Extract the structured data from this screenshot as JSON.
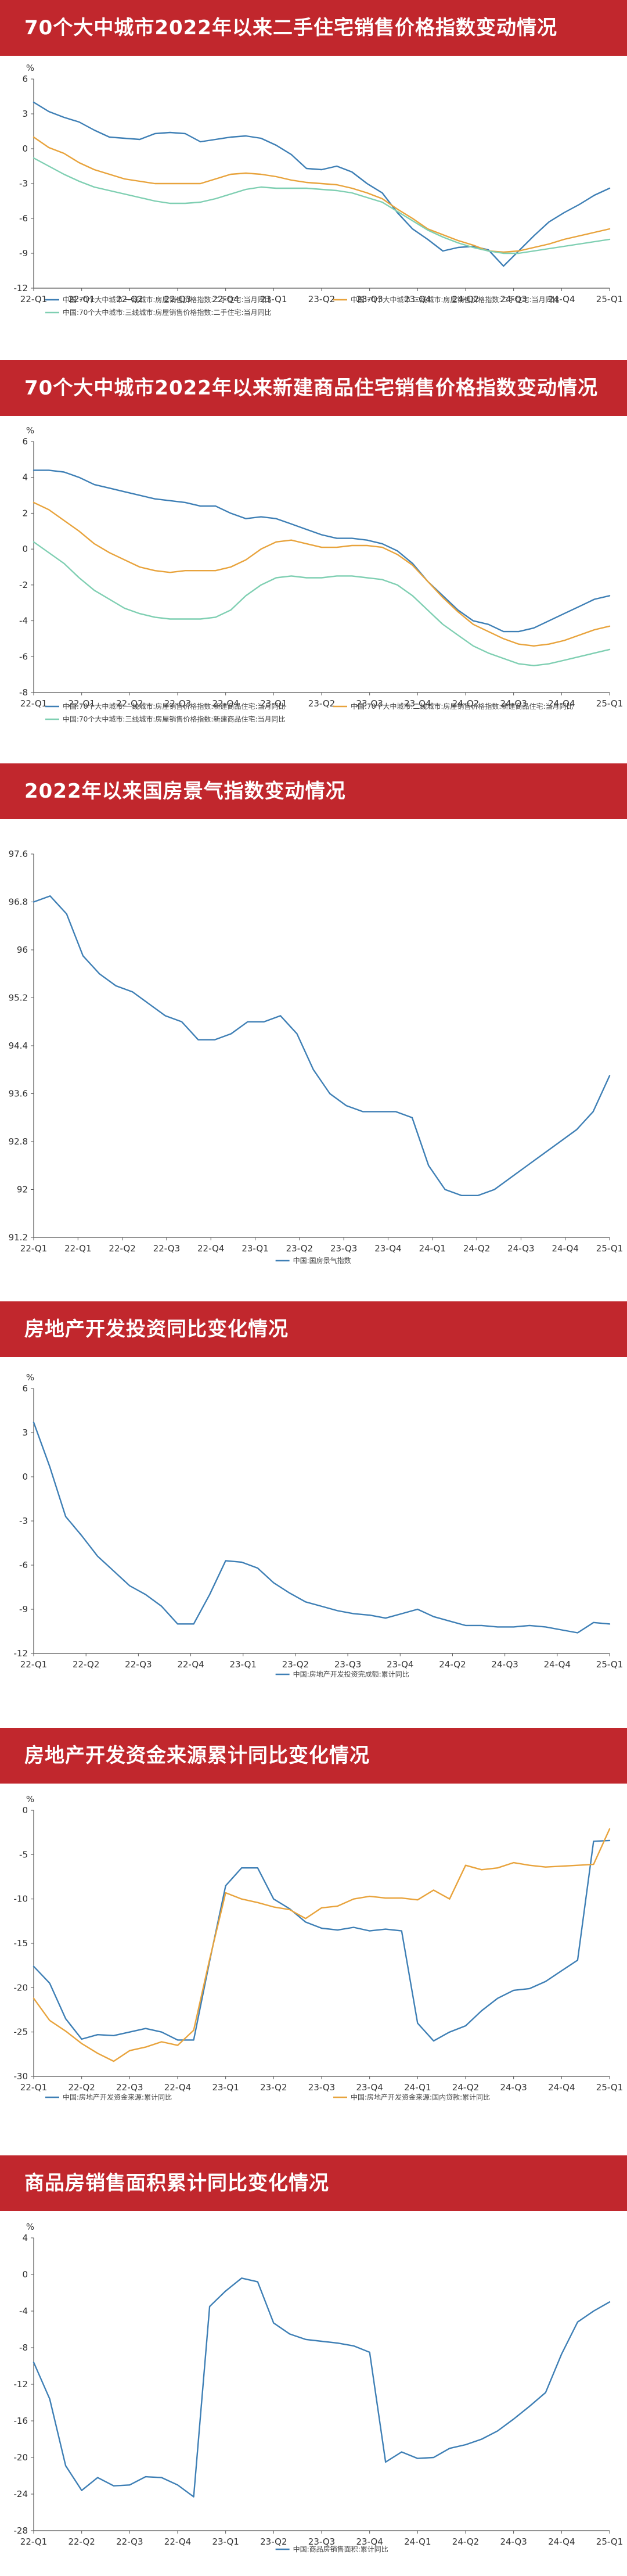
{
  "chart_data": [
    {
      "type": "line",
      "title": "70个大中城市2022年以来二手住宅销售价格指数变动情况",
      "unit": "%",
      "ylim": [
        -12,
        6
      ],
      "yticks": [
        "6",
        "3",
        "0",
        "-3",
        "-6",
        "-9",
        "-12"
      ],
      "ytick_values": [
        6,
        3,
        0,
        -3,
        -6,
        -9,
        -12
      ],
      "xticks": [
        "22-Q1",
        "22-Q1",
        "22-Q2",
        "22-Q3",
        "22-Q4",
        "23-Q1",
        "23-Q2",
        "23-Q3",
        "23-Q4",
        "24-Q2",
        "24-Q3",
        "24-Q4",
        "25-Q1"
      ],
      "n_points": 39,
      "grid": false,
      "series": [
        {
          "name": "中国:70个大中城市:一线城市:房屋销售价格指数:二手住宅:当月同比",
          "color": "#3e7fb5",
          "values": [
            4,
            3.2,
            2.7,
            2.3,
            1.6,
            1.0,
            0.9,
            0.8,
            1.3,
            1.4,
            1.3,
            0.6,
            0.8,
            1.0,
            1.1,
            0.9,
            0.3,
            -0.5,
            -1.7,
            -1.8,
            -1.5,
            -2.0,
            -3.0,
            -3.8,
            -5.5,
            -6.9,
            -7.8,
            -8.8,
            -8.5,
            -8.4,
            -8.7,
            -10.1,
            -8.8,
            -7.5,
            -6.3,
            -5.5,
            -4.8,
            -4.0,
            -3.4
          ]
        },
        {
          "name": "中国:70个大中城市:二线城市:房屋销售价格指数:二手住宅:当月同比",
          "color": "#e8a33c",
          "values": [
            1.0,
            0.1,
            -0.4,
            -1.2,
            -1.8,
            -2.2,
            -2.6,
            -2.8,
            -3.0,
            -3.0,
            -3.0,
            -3.0,
            -2.6,
            -2.2,
            -2.1,
            -2.2,
            -2.4,
            -2.7,
            -2.9,
            -3.0,
            -3.1,
            -3.4,
            -3.8,
            -4.3,
            -5.2,
            -6.0,
            -6.9,
            -7.4,
            -7.9,
            -8.3,
            -8.8,
            -8.9,
            -8.8,
            -8.5,
            -8.2,
            -7.8,
            -7.5,
            -7.2,
            -6.9
          ]
        },
        {
          "name": "中国:70个大中城市:三线城市:房屋销售价格指数:二手住宅:当月同比",
          "color": "#7fcfb2",
          "values": [
            -0.8,
            -1.5,
            -2.2,
            -2.8,
            -3.3,
            -3.6,
            -3.9,
            -4.2,
            -4.5,
            -4.7,
            -4.7,
            -4.6,
            -4.3,
            -3.9,
            -3.5,
            -3.3,
            -3.4,
            -3.4,
            -3.4,
            -3.5,
            -3.6,
            -3.8,
            -4.2,
            -4.6,
            -5.4,
            -6.2,
            -7.0,
            -7.6,
            -8.1,
            -8.5,
            -8.8,
            -9.0,
            -9.0,
            -8.8,
            -8.6,
            -8.4,
            -8.2,
            -8.0,
            -7.8
          ]
        }
      ]
    },
    {
      "type": "line",
      "title": "70个大中城市2022年以来新建商品住宅销售价格指数变动情况",
      "unit": "%",
      "ylim": [
        -8,
        6
      ],
      "yticks": [
        "6",
        "4",
        "2",
        "0",
        "-2",
        "-4",
        "-6",
        "-8"
      ],
      "ytick_values": [
        6,
        4,
        2,
        0,
        -2,
        -4,
        -6,
        -8
      ],
      "xticks": [
        "22-Q1",
        "22-Q1",
        "22-Q2",
        "22-Q3",
        "22-Q4",
        "23-Q1",
        "23-Q2",
        "23-Q3",
        "23-Q4",
        "24-Q2",
        "24-Q3",
        "24-Q4",
        "25-Q1"
      ],
      "n_points": 39,
      "grid": false,
      "series": [
        {
          "name": "中国:70个大中城市:一线城市:房屋销售价格指数:新建商品住宅:当月同比",
          "color": "#3e7fb5",
          "values": [
            4.4,
            4.4,
            4.3,
            4.0,
            3.6,
            3.4,
            3.2,
            3.0,
            2.8,
            2.7,
            2.6,
            2.4,
            2.4,
            2.0,
            1.7,
            1.8,
            1.7,
            1.4,
            1.1,
            0.8,
            0.6,
            0.6,
            0.5,
            0.3,
            -0.1,
            -0.8,
            -1.8,
            -2.6,
            -3.4,
            -4.0,
            -4.2,
            -4.6,
            -4.6,
            -4.4,
            -4.0,
            -3.6,
            -3.2,
            -2.8,
            -2.6
          ]
        },
        {
          "name": "中国:70个大中城市:二线城市:房屋销售价格指数:新建商品住宅:当月同比",
          "color": "#e8a33c",
          "values": [
            2.6,
            2.2,
            1.6,
            1.0,
            0.3,
            -0.2,
            -0.6,
            -1.0,
            -1.2,
            -1.3,
            -1.2,
            -1.2,
            -1.2,
            -1.0,
            -0.6,
            0.0,
            0.4,
            0.5,
            0.3,
            0.1,
            0.1,
            0.2,
            0.2,
            0.1,
            -0.3,
            -0.9,
            -1.8,
            -2.7,
            -3.5,
            -4.2,
            -4.6,
            -5.0,
            -5.3,
            -5.4,
            -5.3,
            -5.1,
            -4.8,
            -4.5,
            -4.3
          ]
        },
        {
          "name": "中国:70个大中城市:三线城市:房屋销售价格指数:新建商品住宅:当月同比",
          "color": "#7fcfb2",
          "values": [
            0.4,
            -0.2,
            -0.8,
            -1.6,
            -2.3,
            -2.8,
            -3.3,
            -3.6,
            -3.8,
            -3.9,
            -3.9,
            -3.9,
            -3.8,
            -3.4,
            -2.6,
            -2.0,
            -1.6,
            -1.5,
            -1.6,
            -1.6,
            -1.5,
            -1.5,
            -1.6,
            -1.7,
            -2.0,
            -2.6,
            -3.4,
            -4.2,
            -4.8,
            -5.4,
            -5.8,
            -6.1,
            -6.4,
            -6.5,
            -6.4,
            -6.2,
            -6.0,
            -5.8,
            -5.6
          ]
        }
      ]
    },
    {
      "type": "line",
      "title": "2022年以来国房景气指数变动情况",
      "ylim": [
        91.2,
        97.6
      ],
      "yticks": [
        "97.6",
        "96.8",
        "96",
        "95.2",
        "94.4",
        "93.6",
        "92.8",
        "92",
        "91.2"
      ],
      "ytick_values": [
        97.6,
        96.8,
        96,
        95.2,
        94.4,
        93.6,
        92.8,
        92,
        91.2
      ],
      "xticks": [
        "22-Q1",
        "22-Q1",
        "22-Q2",
        "22-Q3",
        "22-Q4",
        "23-Q1",
        "23-Q2",
        "23-Q3",
        "23-Q4",
        "24-Q1",
        "24-Q2",
        "24-Q3",
        "24-Q4",
        "25-Q1"
      ],
      "n_points": 36,
      "grid": false,
      "series": [
        {
          "name": "中国:国房景气指数",
          "color": "#3e7fb5",
          "values": [
            96.8,
            96.9,
            96.6,
            95.9,
            95.6,
            95.4,
            95.3,
            95.1,
            94.9,
            94.8,
            94.5,
            94.5,
            94.6,
            94.8,
            94.8,
            94.9,
            94.6,
            94.0,
            93.6,
            93.4,
            93.3,
            93.3,
            93.3,
            93.2,
            92.4,
            92.0,
            91.9,
            91.9,
            92.0,
            92.2,
            92.4,
            92.6,
            92.8,
            93.0,
            93.3,
            93.9
          ]
        }
      ]
    },
    {
      "type": "line",
      "title": "房地产开发投资同比变化情况",
      "unit": "%",
      "ylim": [
        -12,
        6
      ],
      "yticks": [
        "6",
        "3",
        "0",
        "-3",
        "-6",
        "-9",
        "-12"
      ],
      "ytick_values": [
        6,
        3,
        0,
        -3,
        -6,
        -9,
        -12
      ],
      "xticks": [
        "22-Q1",
        "22-Q2",
        "22-Q3",
        "22-Q4",
        "23-Q1",
        "23-Q2",
        "23-Q3",
        "23-Q4",
        "24-Q2",
        "24-Q3",
        "24-Q4",
        "25-Q1"
      ],
      "n_points": 37,
      "grid": false,
      "series": [
        {
          "name": "中国:房地产开发投资完成额:累计同比",
          "color": "#3e7fb5",
          "values": [
            3.7,
            0.7,
            -2.7,
            -4.0,
            -5.4,
            -6.4,
            -7.4,
            -8.0,
            -8.8,
            -10.0,
            -10.0,
            -8.0,
            -5.7,
            -5.8,
            -6.2,
            -7.2,
            -7.9,
            -8.5,
            -8.8,
            -9.1,
            -9.3,
            -9.4,
            -9.6,
            -9.3,
            -9.0,
            -9.5,
            -9.8,
            -10.1,
            -10.1,
            -10.2,
            -10.2,
            -10.1,
            -10.2,
            -10.4,
            -10.6,
            -9.9,
            -10.0
          ]
        }
      ]
    },
    {
      "type": "line",
      "title": "房地产开发资金来源累计同比变化情况",
      "unit": "%",
      "ylim": [
        -30,
        0
      ],
      "yticks": [
        "0",
        "-5",
        "-10",
        "-15",
        "-20",
        "-25",
        "-30"
      ],
      "ytick_values": [
        0,
        -5,
        -10,
        -15,
        -20,
        -25,
        -30
      ],
      "xticks": [
        "22-Q1",
        "22-Q2",
        "22-Q3",
        "22-Q4",
        "23-Q1",
        "23-Q2",
        "23-Q3",
        "23-Q4",
        "24-Q1",
        "24-Q2",
        "24-Q3",
        "24-Q4",
        "25-Q1"
      ],
      "n_points": 37,
      "grid": false,
      "series": [
        {
          "name": "中国:房地产开发资金来源:累计同比",
          "color": "#3e7fb5",
          "values": [
            -17.6,
            -19.5,
            -23.5,
            -25.8,
            -25.3,
            -25.4,
            -25.0,
            -24.6,
            -25.0,
            -25.9,
            -25.9,
            -17.0,
            -8.5,
            -6.5,
            -6.5,
            -10.0,
            -11.1,
            -12.6,
            -13.3,
            -13.5,
            -13.2,
            -13.6,
            -13.4,
            -13.6,
            -24.0,
            -26.0,
            -25.0,
            -24.3,
            -22.6,
            -21.2,
            -20.3,
            -20.1,
            -19.3,
            -18.1,
            -16.9,
            -3.5,
            -3.4
          ]
        },
        {
          "name": "中国:房地产开发资金来源:国内贷款:累计同比",
          "color": "#e8a33c",
          "values": [
            -21.2,
            -23.7,
            -24.9,
            -26.3,
            -27.4,
            -28.3,
            -27.1,
            -26.7,
            -26.1,
            -26.5,
            -24.8,
            -16.8,
            -9.3,
            -10.0,
            -10.4,
            -10.9,
            -11.2,
            -12.2,
            -11.0,
            -10.8,
            -10.0,
            -9.7,
            -9.9,
            -9.9,
            -10.1,
            -9.0,
            -10.0,
            -6.2,
            -6.7,
            -6.5,
            -5.9,
            -6.2,
            -6.4,
            -6.3,
            -6.2,
            -6.1,
            -2.1
          ]
        }
      ]
    },
    {
      "type": "line",
      "title": "商品房销售面积累计同比变化情况",
      "unit": "%",
      "ylim": [
        -28,
        4
      ],
      "yticks": [
        "4",
        "0",
        "-4",
        "-8",
        "-12",
        "-16",
        "-20",
        "-24",
        "-28"
      ],
      "ytick_values": [
        4,
        0,
        -4,
        -8,
        -12,
        -16,
        -20,
        -24,
        -28
      ],
      "xticks": [
        "22-Q1",
        "22-Q2",
        "22-Q3",
        "22-Q4",
        "23-Q1",
        "23-Q2",
        "23-Q3",
        "23-Q4",
        "24-Q1",
        "24-Q2",
        "24-Q3",
        "24-Q4",
        "25-Q1"
      ],
      "n_points": 37,
      "grid": false,
      "series": [
        {
          "name": "中国:商品房销售面积:累计同比",
          "color": "#3e7fb5",
          "values": [
            -9.6,
            -13.6,
            -20.9,
            -23.6,
            -22.2,
            -23.1,
            -23.0,
            -22.1,
            -22.2,
            -23.0,
            -24.3,
            -3.5,
            -1.8,
            -0.4,
            -0.8,
            -5.3,
            -6.5,
            -7.1,
            -7.3,
            -7.5,
            -7.8,
            -8.5,
            -20.5,
            -19.4,
            -20.1,
            -20.0,
            -19.0,
            -18.6,
            -18.0,
            -17.1,
            -15.8,
            -14.4,
            -12.9,
            -8.7,
            -5.2,
            -4.0,
            -3.0
          ]
        }
      ]
    }
  ]
}
